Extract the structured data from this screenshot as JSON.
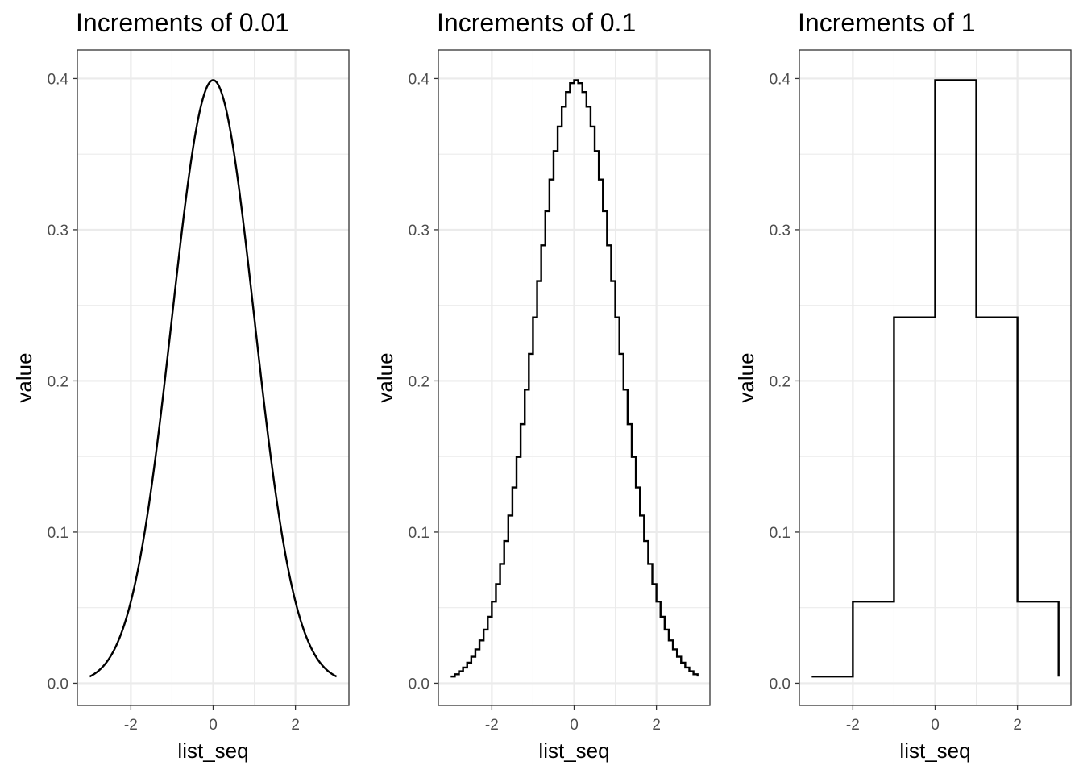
{
  "chart_data": [
    {
      "type": "line",
      "title": "Increments of 0.01",
      "xlabel": "list_seq",
      "ylabel": "value",
      "x_step": 0.01,
      "x_range": [
        -3,
        3
      ],
      "function": "standard normal density",
      "xlim": [
        -3.3,
        3.3
      ],
      "ylim": [
        -0.0147,
        0.4189
      ],
      "x_ticks": [
        -2,
        0,
        2
      ],
      "x_tick_labels": [
        "-2",
        "0",
        "2"
      ],
      "y_ticks": [
        0.0,
        0.1,
        0.2,
        0.3,
        0.4
      ],
      "y_tick_labels": [
        "0.0",
        "0.1",
        "0.2",
        "0.3",
        "0.4"
      ],
      "grid": true,
      "step": false
    },
    {
      "type": "line",
      "title": "Increments of 0.1",
      "xlabel": "list_seq",
      "ylabel": "value",
      "x_step": 0.1,
      "x_range": [
        -3,
        3
      ],
      "function": "standard normal density",
      "xlim": [
        -3.3,
        3.3
      ],
      "ylim": [
        -0.0147,
        0.4189
      ],
      "x_ticks": [
        -2,
        0,
        2
      ],
      "x_tick_labels": [
        "-2",
        "0",
        "2"
      ],
      "y_ticks": [
        0.0,
        0.1,
        0.2,
        0.3,
        0.4
      ],
      "y_tick_labels": [
        "0.0",
        "0.1",
        "0.2",
        "0.3",
        "0.4"
      ],
      "grid": true,
      "step": true
    },
    {
      "type": "line",
      "title": "Increments of 1",
      "xlabel": "list_seq",
      "ylabel": "value",
      "x_step": 1,
      "x_range": [
        -3,
        3
      ],
      "x": [
        -3,
        -2,
        -1,
        0,
        1,
        2,
        3
      ],
      "values": [
        0.0044,
        0.054,
        0.242,
        0.3989,
        0.242,
        0.054,
        0.0044
      ],
      "xlim": [
        -3.3,
        3.3
      ],
      "ylim": [
        -0.0147,
        0.4189
      ],
      "x_ticks": [
        -2,
        0,
        2
      ],
      "x_tick_labels": [
        "-2",
        "0",
        "2"
      ],
      "y_ticks": [
        0.0,
        0.1,
        0.2,
        0.3,
        0.4
      ],
      "y_tick_labels": [
        "0.0",
        "0.1",
        "0.2",
        "0.3",
        "0.4"
      ],
      "grid": true,
      "step": true
    }
  ]
}
